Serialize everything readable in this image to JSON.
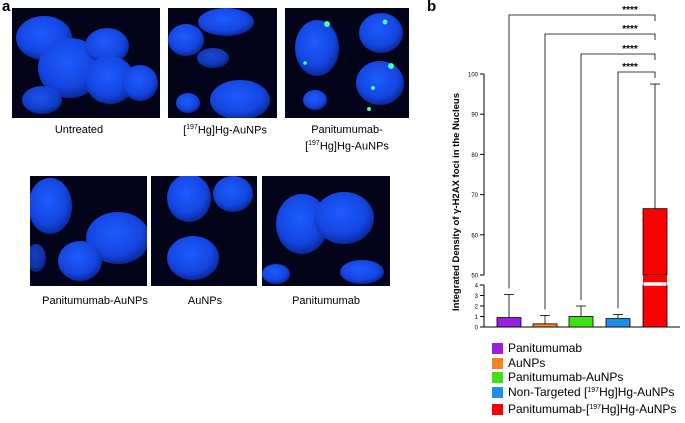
{
  "panel_a": {
    "letter": "a",
    "images": [
      {
        "id": "untreated",
        "caption": "Untreated"
      },
      {
        "id": "hg-aunps",
        "caption_pre": "[",
        "caption_sup": "197",
        "caption_post": "Hg]Hg-AuNPs"
      },
      {
        "id": "pan-hg-aunps",
        "caption_line1": "Panitumumab-",
        "caption_pre": "[",
        "caption_sup": "197",
        "caption_post": "Hg]Hg-AuNPs"
      },
      {
        "id": "pan-aunps",
        "caption": "Panitumumab-AuNPs"
      },
      {
        "id": "aunps",
        "caption": "AuNPs"
      },
      {
        "id": "pan",
        "caption": "Panitumumab"
      }
    ]
  },
  "panel_b": {
    "letter": "b"
  },
  "chart_data": {
    "type": "bar",
    "ylabel": "Integrated Density of γ-H2AX foci in the Nucleus",
    "y_axis_break": {
      "lower_range": [
        0,
        4
      ],
      "upper_range": [
        50,
        100
      ]
    },
    "lower_ticks": [
      "0",
      "1",
      "2",
      "3",
      "4"
    ],
    "upper_ticks": [
      "50",
      "60",
      "70",
      "80",
      "90",
      "100"
    ],
    "categories": [
      "Panitumumab",
      "AuNPs",
      "Panitumumab-AuNPs",
      "Non-Targeted [197Hg]Hg-AuNPs",
      "Panitumumab-[197Hg]Hg-AuNPs"
    ],
    "series": [
      {
        "values": [
          0.9,
          0.3,
          1.0,
          0.8,
          66.5
        ],
        "error": [
          2.2,
          0.8,
          1.0,
          0.4,
          31.0
        ]
      }
    ],
    "significance": [
      {
        "from": 0,
        "to": 4,
        "label": "****"
      },
      {
        "from": 1,
        "to": 4,
        "label": "****"
      },
      {
        "from": 2,
        "to": 4,
        "label": "****"
      },
      {
        "from": 3,
        "to": 4,
        "label": "****"
      }
    ],
    "legend": {
      "position": "bottom",
      "entries": [
        {
          "label": "Panitumumab",
          "color": "#9b1fe0"
        },
        {
          "label": "AuNPs",
          "color": "#f5841f"
        },
        {
          "label": "Panitumumab-AuNPs",
          "color": "#3fe016"
        },
        {
          "pre": "Non-Targeted [",
          "sup": "197",
          "post": "Hg]Hg-AuNPs",
          "color": "#1f8ee8"
        },
        {
          "pre": "Panitumumab-[",
          "sup": "197",
          "post": "Hg]Hg-AuNPs",
          "color": "#ff0000"
        }
      ]
    },
    "colors": [
      "#9b1fe0",
      "#f5841f",
      "#3fe016",
      "#1f8ee8",
      "#ff0000"
    ]
  }
}
